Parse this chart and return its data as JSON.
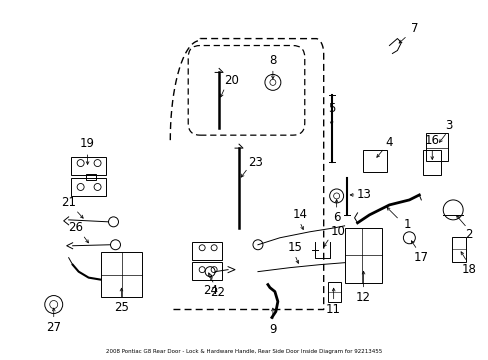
{
  "title": "2008 Pontiac G8 Rear Door - Lock & Hardware Handle, Rear Side Door Inside Diagram for 92213455",
  "bg_color": "#ffffff",
  "line_color": "#000000",
  "text_color": "#000000",
  "fig_width": 4.89,
  "fig_height": 3.6,
  "dpi": 100
}
